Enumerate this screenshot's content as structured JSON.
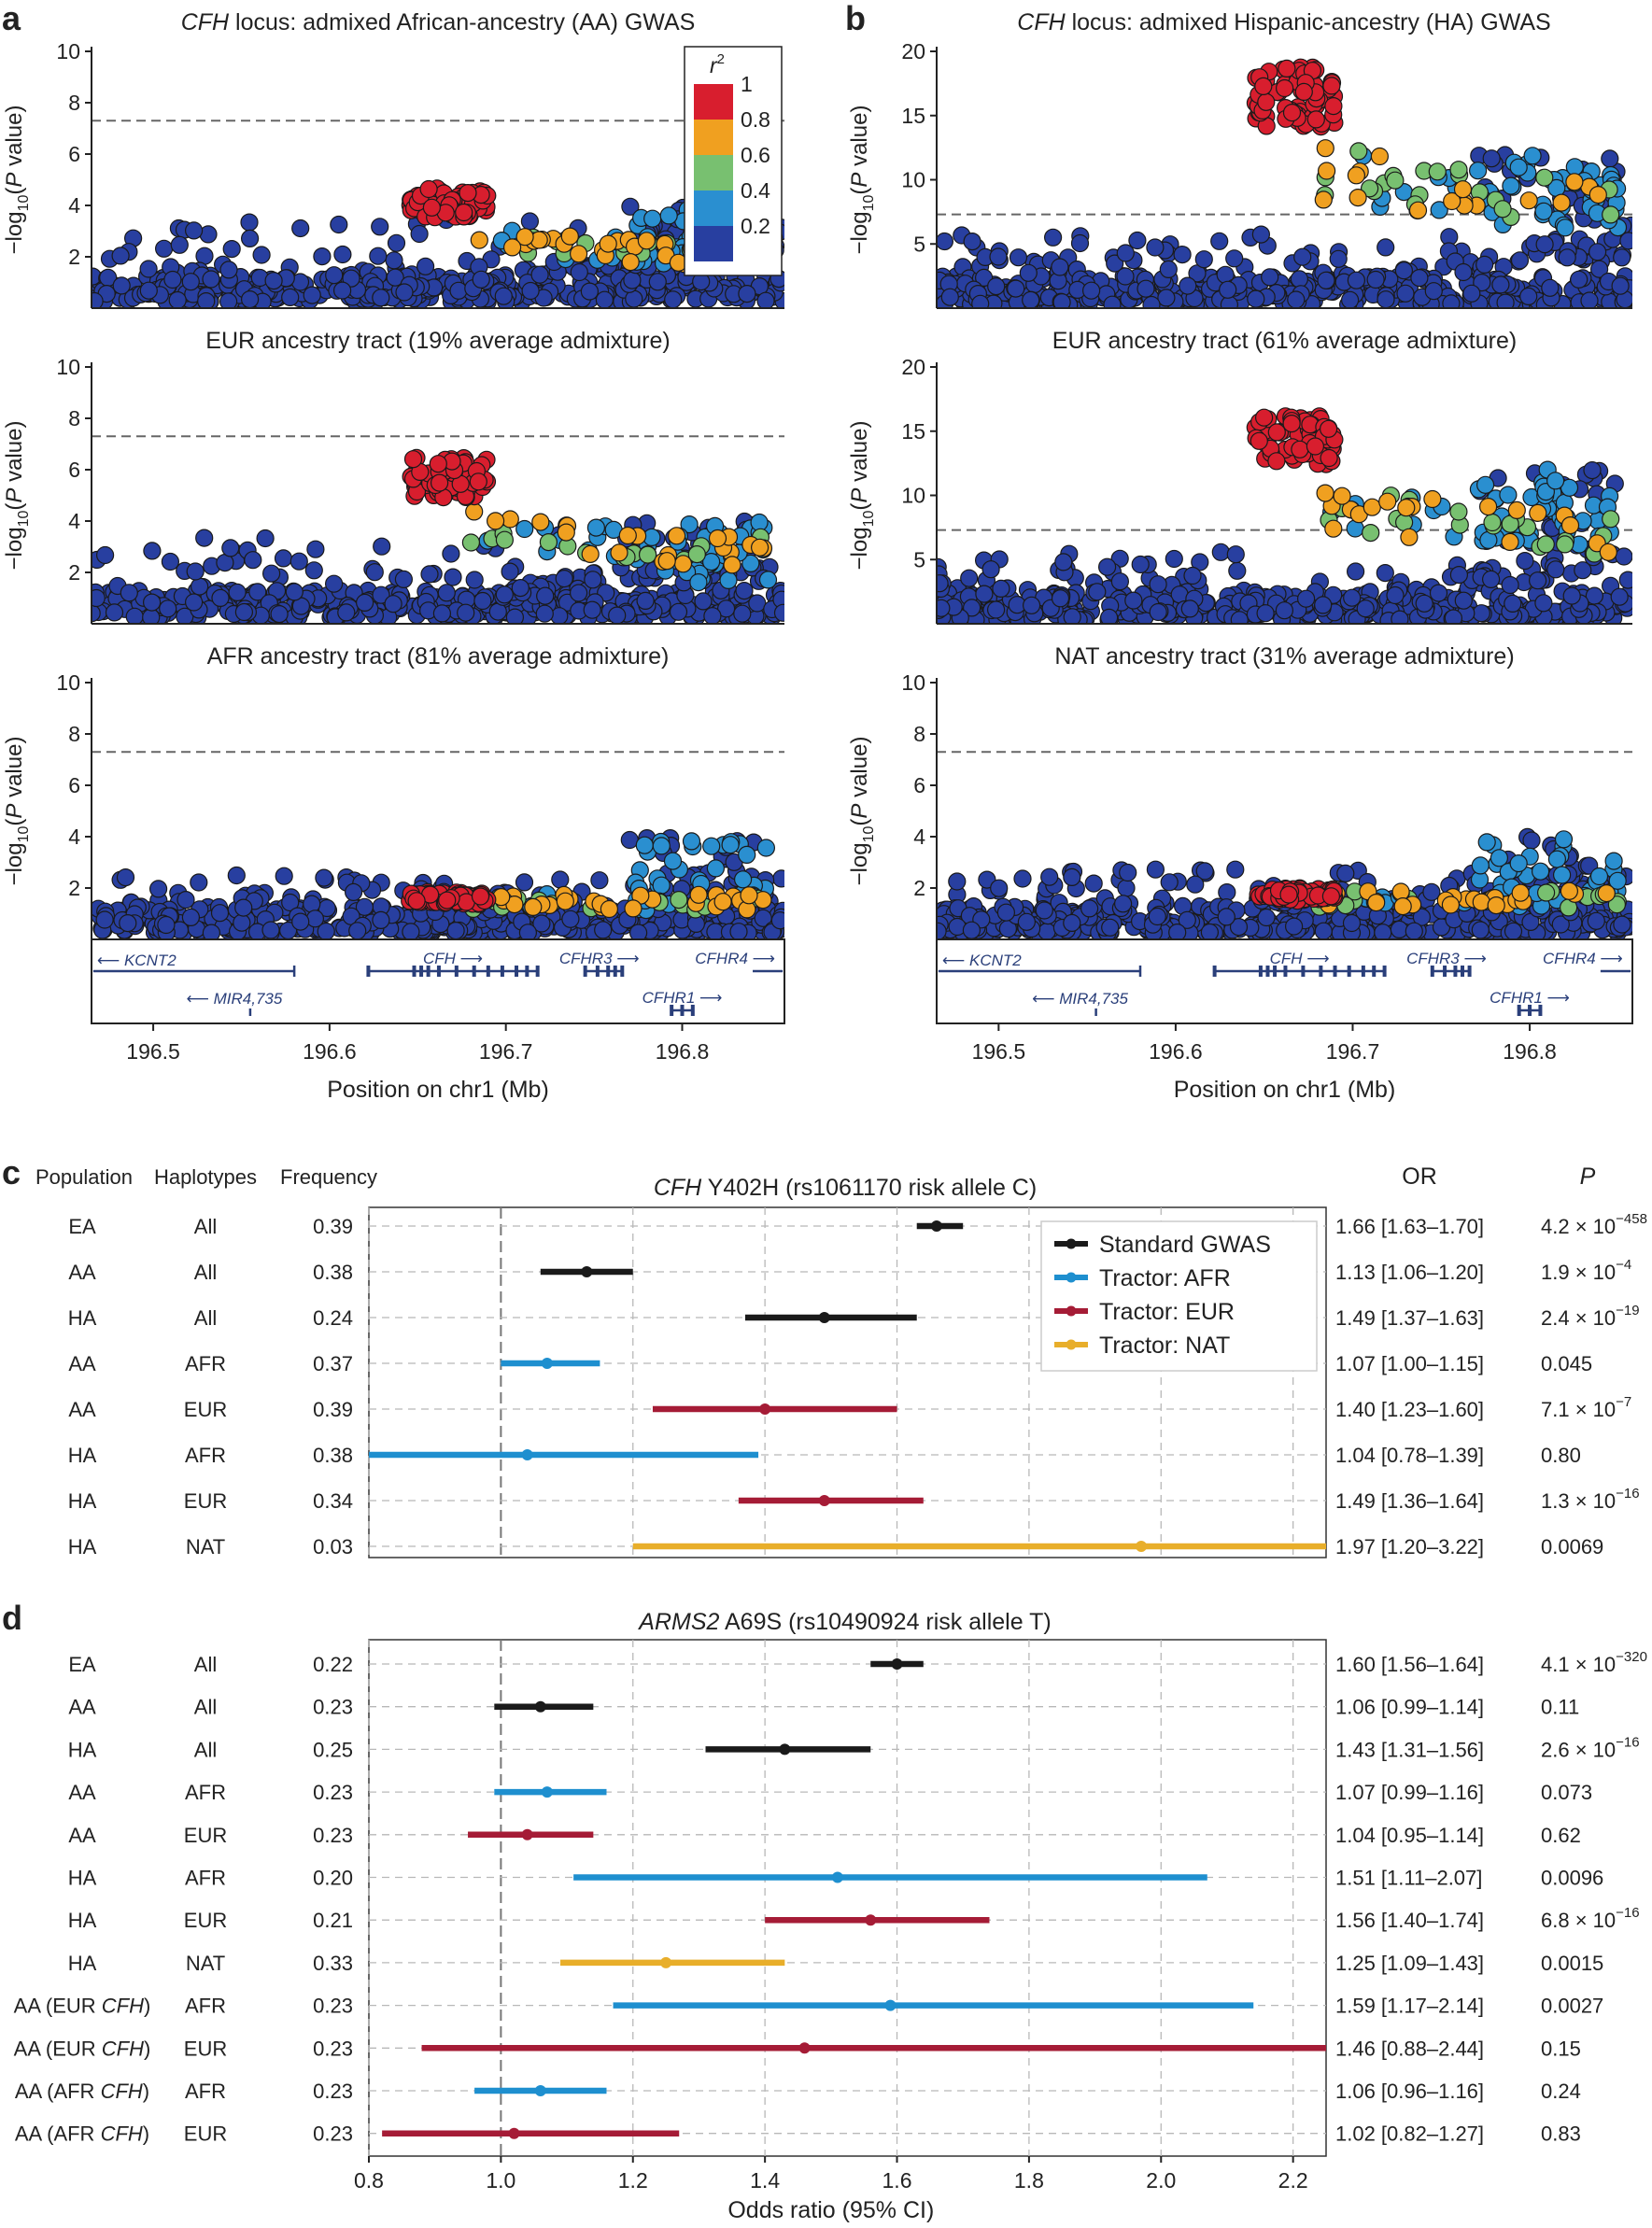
{
  "figure": {
    "colors": {
      "r2": [
        "#283fa0",
        "#2a8fd0",
        "#78c070",
        "#f0a020",
        "#d81e2e"
      ],
      "standard": "#1a1a1a",
      "afr": "#1e8fcf",
      "eur": "#a51c36",
      "nat": "#e8ae2a",
      "gene": "#2a3f7a",
      "grid": "#b8b8b8"
    },
    "legend_r2": {
      "title": "r",
      "title_sup": "2",
      "labels": [
        "1",
        "0.8",
        "0.6",
        "0.4",
        "0.2"
      ]
    },
    "panels": {
      "a": {
        "label": "a",
        "title_italic": "CFH",
        "title_rest": " locus: admixed African-ancestry (AA) GWAS",
        "subplots": [
          {
            "title": "",
            "ylim": [
              0,
              10
            ],
            "yticks": [
              "2",
              "4",
              "6",
              "8",
              "10"
            ],
            "peak": 4.7
          },
          {
            "title": "EUR ancestry tract (19% average admixture)",
            "ylim": [
              0,
              10
            ],
            "yticks": [
              "2",
              "4",
              "6",
              "8",
              "10"
            ],
            "peak": 6.5
          },
          {
            "title": "AFR ancestry tract (81% average admixture)",
            "ylim": [
              0,
              10
            ],
            "yticks": [
              "2",
              "4",
              "6",
              "8",
              "10"
            ],
            "peak": 2.3
          }
        ]
      },
      "b": {
        "label": "b",
        "title_italic": "CFH",
        "title_rest": " locus: admixed Hispanic-ancestry (HA) GWAS",
        "subplots": [
          {
            "title": "",
            "ylim": [
              0,
              20
            ],
            "yticks": [
              "5",
              "10",
              "15",
              "20"
            ],
            "peak": 18.8
          },
          {
            "title": "EUR ancestry tract (61% average admixture)",
            "ylim": [
              0,
              20
            ],
            "yticks": [
              "5",
              "10",
              "15",
              "20"
            ],
            "peak": 16.2
          },
          {
            "title": "NAT ancestry tract (31% average admixture)",
            "ylim": [
              0,
              10
            ],
            "yticks": [
              "2",
              "4",
              "6",
              "8",
              "10"
            ],
            "peak": 2.5
          }
        ]
      }
    },
    "ylabel": "−log10(P value)",
    "significance_line": 7.3,
    "xaxis": {
      "label": "Position on chr1 (Mb)",
      "range": [
        196.465,
        196.858
      ],
      "ticks": [
        "196.5",
        "196.6",
        "196.7",
        "196.8"
      ]
    },
    "genes": [
      "KCNT2",
      "MIR4,735",
      "CFH",
      "CFHR3",
      "CFHR1",
      "CFHR4"
    ],
    "panel_c": {
      "label": "c",
      "title_italic": "CFH",
      "title_rest": " Y402H (rs1061170 risk allele C)",
      "headers": {
        "population": "Population",
        "haplotypes": "Haplotypes",
        "frequency": "Frequency",
        "or": "OR",
        "p": "P"
      },
      "legend": [
        "Standard GWAS",
        "Tractor: AFR",
        "Tractor: EUR",
        "Tractor: NAT"
      ],
      "rows": [
        {
          "pop": "EA",
          "hap": "All",
          "freq": "0.39",
          "or_text": "1.66 [1.63–1.70]",
          "p_base": "4.2 × 10",
          "p_exp": "−458",
          "type": "standard",
          "or": 1.66,
          "lo": 1.63,
          "hi": 1.7
        },
        {
          "pop": "AA",
          "hap": "All",
          "freq": "0.38",
          "or_text": "1.13 [1.06–1.20]",
          "p_base": "1.9 × 10",
          "p_exp": "−4",
          "type": "standard",
          "or": 1.13,
          "lo": 1.06,
          "hi": 1.2
        },
        {
          "pop": "HA",
          "hap": "All",
          "freq": "0.24",
          "or_text": "1.49 [1.37–1.63]",
          "p_base": "2.4 × 10",
          "p_exp": "−19",
          "type": "standard",
          "or": 1.49,
          "lo": 1.37,
          "hi": 1.63
        },
        {
          "pop": "AA",
          "hap": "AFR",
          "freq": "0.37",
          "or_text": "1.07 [1.00–1.15]",
          "p_base": "0.045",
          "p_exp": "",
          "type": "afr",
          "or": 1.07,
          "lo": 1.0,
          "hi": 1.15
        },
        {
          "pop": "AA",
          "hap": "EUR",
          "freq": "0.39",
          "or_text": "1.40 [1.23–1.60]",
          "p_base": "7.1 × 10",
          "p_exp": "−7",
          "type": "eur",
          "or": 1.4,
          "lo": 1.23,
          "hi": 1.6
        },
        {
          "pop": "HA",
          "hap": "AFR",
          "freq": "0.38",
          "or_text": "1.04 [0.78–1.39]",
          "p_base": "0.80",
          "p_exp": "",
          "type": "afr",
          "or": 1.04,
          "lo": 0.78,
          "hi": 1.39
        },
        {
          "pop": "HA",
          "hap": "EUR",
          "freq": "0.34",
          "or_text": "1.49 [1.36–1.64]",
          "p_base": "1.3 × 10",
          "p_exp": "−16",
          "type": "eur",
          "or": 1.49,
          "lo": 1.36,
          "hi": 1.64
        },
        {
          "pop": "HA",
          "hap": "NAT",
          "freq": "0.03",
          "or_text": "1.97 [1.20–3.22]",
          "p_base": "0.0069",
          "p_exp": "",
          "type": "nat",
          "or": 1.97,
          "lo": 1.2,
          "hi": 3.22
        }
      ]
    },
    "panel_d": {
      "label": "d",
      "title_italic": "ARMS2",
      "title_rest": " A69S (rs10490924 risk allele T)",
      "rows": [
        {
          "pop": "EA",
          "pop_it": "",
          "pop_close": "",
          "hap": "All",
          "freq": "0.22",
          "or_text": "1.60 [1.56–1.64]",
          "p_base": "4.1 × 10",
          "p_exp": "−320",
          "type": "standard",
          "or": 1.6,
          "lo": 1.56,
          "hi": 1.64
        },
        {
          "pop": "AA",
          "pop_it": "",
          "pop_close": "",
          "hap": "All",
          "freq": "0.23",
          "or_text": "1.06 [0.99–1.14]",
          "p_base": "0.11",
          "p_exp": "",
          "type": "standard",
          "or": 1.06,
          "lo": 0.99,
          "hi": 1.14
        },
        {
          "pop": "HA",
          "pop_it": "",
          "pop_close": "",
          "hap": "All",
          "freq": "0.25",
          "or_text": "1.43 [1.31–1.56]",
          "p_base": "2.6 × 10",
          "p_exp": "−16",
          "type": "standard",
          "or": 1.43,
          "lo": 1.31,
          "hi": 1.56
        },
        {
          "pop": "AA",
          "pop_it": "",
          "pop_close": "",
          "hap": "AFR",
          "freq": "0.23",
          "or_text": "1.07 [0.99–1.16]",
          "p_base": "0.073",
          "p_exp": "",
          "type": "afr",
          "or": 1.07,
          "lo": 0.99,
          "hi": 1.16
        },
        {
          "pop": "AA",
          "pop_it": "",
          "pop_close": "",
          "hap": "EUR",
          "freq": "0.23",
          "or_text": "1.04 [0.95–1.14]",
          "p_base": "0.62",
          "p_exp": "",
          "type": "eur",
          "or": 1.04,
          "lo": 0.95,
          "hi": 1.14
        },
        {
          "pop": "HA",
          "pop_it": "",
          "pop_close": "",
          "hap": "AFR",
          "freq": "0.20",
          "or_text": "1.51 [1.11–2.07]",
          "p_base": "0.0096",
          "p_exp": "",
          "type": "afr",
          "or": 1.51,
          "lo": 1.11,
          "hi": 2.07
        },
        {
          "pop": "HA",
          "pop_it": "",
          "pop_close": "",
          "hap": "EUR",
          "freq": "0.21",
          "or_text": "1.56 [1.40–1.74]",
          "p_base": "6.8 × 10",
          "p_exp": "−16",
          "type": "eur",
          "or": 1.56,
          "lo": 1.4,
          "hi": 1.74
        },
        {
          "pop": "HA",
          "pop_it": "",
          "pop_close": "",
          "hap": "NAT",
          "freq": "0.33",
          "or_text": "1.25 [1.09–1.43]",
          "p_base": "0.0015",
          "p_exp": "",
          "type": "nat",
          "or": 1.25,
          "lo": 1.09,
          "hi": 1.43
        },
        {
          "pop": "AA (EUR ",
          "pop_it": "CFH",
          "pop_close": ")",
          "hap": "AFR",
          "freq": "0.23",
          "or_text": "1.59 [1.17–2.14]",
          "p_base": "0.0027",
          "p_exp": "",
          "type": "afr",
          "or": 1.59,
          "lo": 1.17,
          "hi": 2.14
        },
        {
          "pop": "AA (EUR ",
          "pop_it": "CFH",
          "pop_close": ")",
          "hap": "EUR",
          "freq": "0.23",
          "or_text": "1.46 [0.88–2.44]",
          "p_base": "0.15",
          "p_exp": "",
          "type": "eur",
          "or": 1.46,
          "lo": 0.88,
          "hi": 2.44
        },
        {
          "pop": "AA (AFR ",
          "pop_it": "CFH",
          "pop_close": ")",
          "hap": "AFR",
          "freq": "0.23",
          "or_text": "1.06 [0.96–1.16]",
          "p_base": "0.24",
          "p_exp": "",
          "type": "afr",
          "or": 1.06,
          "lo": 0.96,
          "hi": 1.16
        },
        {
          "pop": "AA (AFR ",
          "pop_it": "CFH",
          "pop_close": ")",
          "hap": "EUR",
          "freq": "0.23",
          "or_text": "1.02 [0.82–1.27]",
          "p_base": "0.83",
          "p_exp": "",
          "type": "eur",
          "or": 1.02,
          "lo": 0.82,
          "hi": 1.27
        }
      ]
    },
    "forest_xaxis": {
      "label": "Odds ratio (95% CI)",
      "range": [
        0.8,
        2.25
      ],
      "ticks": [
        "0.8",
        "1.0",
        "1.2",
        "1.4",
        "1.6",
        "1.8",
        "2.0",
        "2.2"
      ]
    }
  },
  "chart_data": [
    {
      "type": "scatter",
      "title": "CFH locus: admixed African-ancestry (AA) GWAS",
      "xlabel": "Position on chr1 (Mb)",
      "ylabel": "−log10(P value)",
      "xlim": [
        196.465,
        196.858
      ],
      "ylim": [
        0,
        10
      ],
      "significance_threshold": 7.3,
      "summary": {
        "peak_neglog10p": 4.7,
        "lead_region_mb": [
          196.65,
          196.69
        ]
      },
      "legend": {
        "title": "r2",
        "levels": [
          "1",
          "0.8",
          "0.6",
          "0.4",
          "0.2"
        ]
      }
    },
    {
      "type": "scatter",
      "title": "EUR ancestry tract (19% average admixture)",
      "xlabel": "Position on chr1 (Mb)",
      "ylabel": "−log10(P value)",
      "xlim": [
        196.465,
        196.858
      ],
      "ylim": [
        0,
        10
      ],
      "significance_threshold": 7.3,
      "summary": {
        "peak_neglog10p": 6.5,
        "lead_region_mb": [
          196.65,
          196.69
        ]
      }
    },
    {
      "type": "scatter",
      "title": "AFR ancestry tract (81% average admixture)",
      "xlabel": "Position on chr1 (Mb)",
      "ylabel": "−log10(P value)",
      "xlim": [
        196.465,
        196.858
      ],
      "ylim": [
        0,
        10
      ],
      "significance_threshold": 7.3,
      "summary": {
        "peak_neglog10p": 2.3
      }
    },
    {
      "type": "scatter",
      "title": "CFH locus: admixed Hispanic-ancestry (HA) GWAS",
      "xlabel": "Position on chr1 (Mb)",
      "ylabel": "−log10(P value)",
      "xlim": [
        196.465,
        196.858
      ],
      "ylim": [
        0,
        20
      ],
      "significance_threshold": 7.3,
      "summary": {
        "peak_neglog10p": 18.8,
        "lead_region_mb": [
          196.65,
          196.68
        ]
      }
    },
    {
      "type": "scatter",
      "title": "EUR ancestry tract (61% average admixture)",
      "xlabel": "Position on chr1 (Mb)",
      "ylabel": "−log10(P value)",
      "xlim": [
        196.465,
        196.858
      ],
      "ylim": [
        0,
        20
      ],
      "significance_threshold": 7.3,
      "summary": {
        "peak_neglog10p": 16.2,
        "lead_region_mb": [
          196.65,
          196.68
        ]
      }
    },
    {
      "type": "scatter",
      "title": "NAT ancestry tract (31% average admixture)",
      "xlabel": "Position on chr1 (Mb)",
      "ylabel": "−log10(P value)",
      "xlim": [
        196.465,
        196.858
      ],
      "ylim": [
        0,
        10
      ],
      "significance_threshold": 7.3,
      "summary": {
        "peak_neglog10p": 2.5
      }
    },
    {
      "type": "forest",
      "title": "CFH Y402H (rs1061170 risk allele C)",
      "xlabel": "Odds ratio (95% CI)",
      "xlim": [
        0.8,
        2.25
      ],
      "reference_line": 1.0,
      "series": [
        "Standard GWAS",
        "Tractor: AFR",
        "Tractor: EUR",
        "Tractor: NAT"
      ],
      "rows": [
        {
          "population": "EA",
          "haplotypes": "All",
          "or": 1.66,
          "ci": [
            1.63,
            1.7
          ]
        },
        {
          "population": "AA",
          "haplotypes": "All",
          "or": 1.13,
          "ci": [
            1.06,
            1.2
          ]
        },
        {
          "population": "HA",
          "haplotypes": "All",
          "or": 1.49,
          "ci": [
            1.37,
            1.63
          ]
        },
        {
          "population": "AA",
          "haplotypes": "AFR",
          "or": 1.07,
          "ci": [
            1.0,
            1.15
          ]
        },
        {
          "population": "AA",
          "haplotypes": "EUR",
          "or": 1.4,
          "ci": [
            1.23,
            1.6
          ]
        },
        {
          "population": "HA",
          "haplotypes": "AFR",
          "or": 1.04,
          "ci": [
            0.78,
            1.39
          ]
        },
        {
          "population": "HA",
          "haplotypes": "EUR",
          "or": 1.49,
          "ci": [
            1.36,
            1.64
          ]
        },
        {
          "population": "HA",
          "haplotypes": "NAT",
          "or": 1.97,
          "ci": [
            1.2,
            3.22
          ]
        }
      ]
    },
    {
      "type": "forest",
      "title": "ARMS2 A69S (rs10490924 risk allele T)",
      "xlabel": "Odds ratio (95% CI)",
      "xlim": [
        0.8,
        2.25
      ],
      "reference_line": 1.0,
      "rows": [
        {
          "population": "EA",
          "haplotypes": "All",
          "or": 1.6,
          "ci": [
            1.56,
            1.64
          ]
        },
        {
          "population": "AA",
          "haplotypes": "All",
          "or": 1.06,
          "ci": [
            0.99,
            1.14
          ]
        },
        {
          "population": "HA",
          "haplotypes": "All",
          "or": 1.43,
          "ci": [
            1.31,
            1.56
          ]
        },
        {
          "population": "AA",
          "haplotypes": "AFR",
          "or": 1.07,
          "ci": [
            0.99,
            1.16
          ]
        },
        {
          "population": "AA",
          "haplotypes": "EUR",
          "or": 1.04,
          "ci": [
            0.95,
            1.14
          ]
        },
        {
          "population": "HA",
          "haplotypes": "AFR",
          "or": 1.51,
          "ci": [
            1.11,
            2.07
          ]
        },
        {
          "population": "HA",
          "haplotypes": "EUR",
          "or": 1.56,
          "ci": [
            1.4,
            1.74
          ]
        },
        {
          "population": "HA",
          "haplotypes": "NAT",
          "or": 1.25,
          "ci": [
            1.09,
            1.43
          ]
        },
        {
          "population": "AA (EUR CFH)",
          "haplotypes": "AFR",
          "or": 1.59,
          "ci": [
            1.17,
            2.14
          ]
        },
        {
          "population": "AA (EUR CFH)",
          "haplotypes": "EUR",
          "or": 1.46,
          "ci": [
            0.88,
            2.44
          ]
        },
        {
          "population": "AA (AFR CFH)",
          "haplotypes": "AFR",
          "or": 1.06,
          "ci": [
            0.96,
            1.16
          ]
        },
        {
          "population": "AA (AFR CFH)",
          "haplotypes": "EUR",
          "or": 1.02,
          "ci": [
            0.82,
            1.27
          ]
        }
      ]
    }
  ]
}
